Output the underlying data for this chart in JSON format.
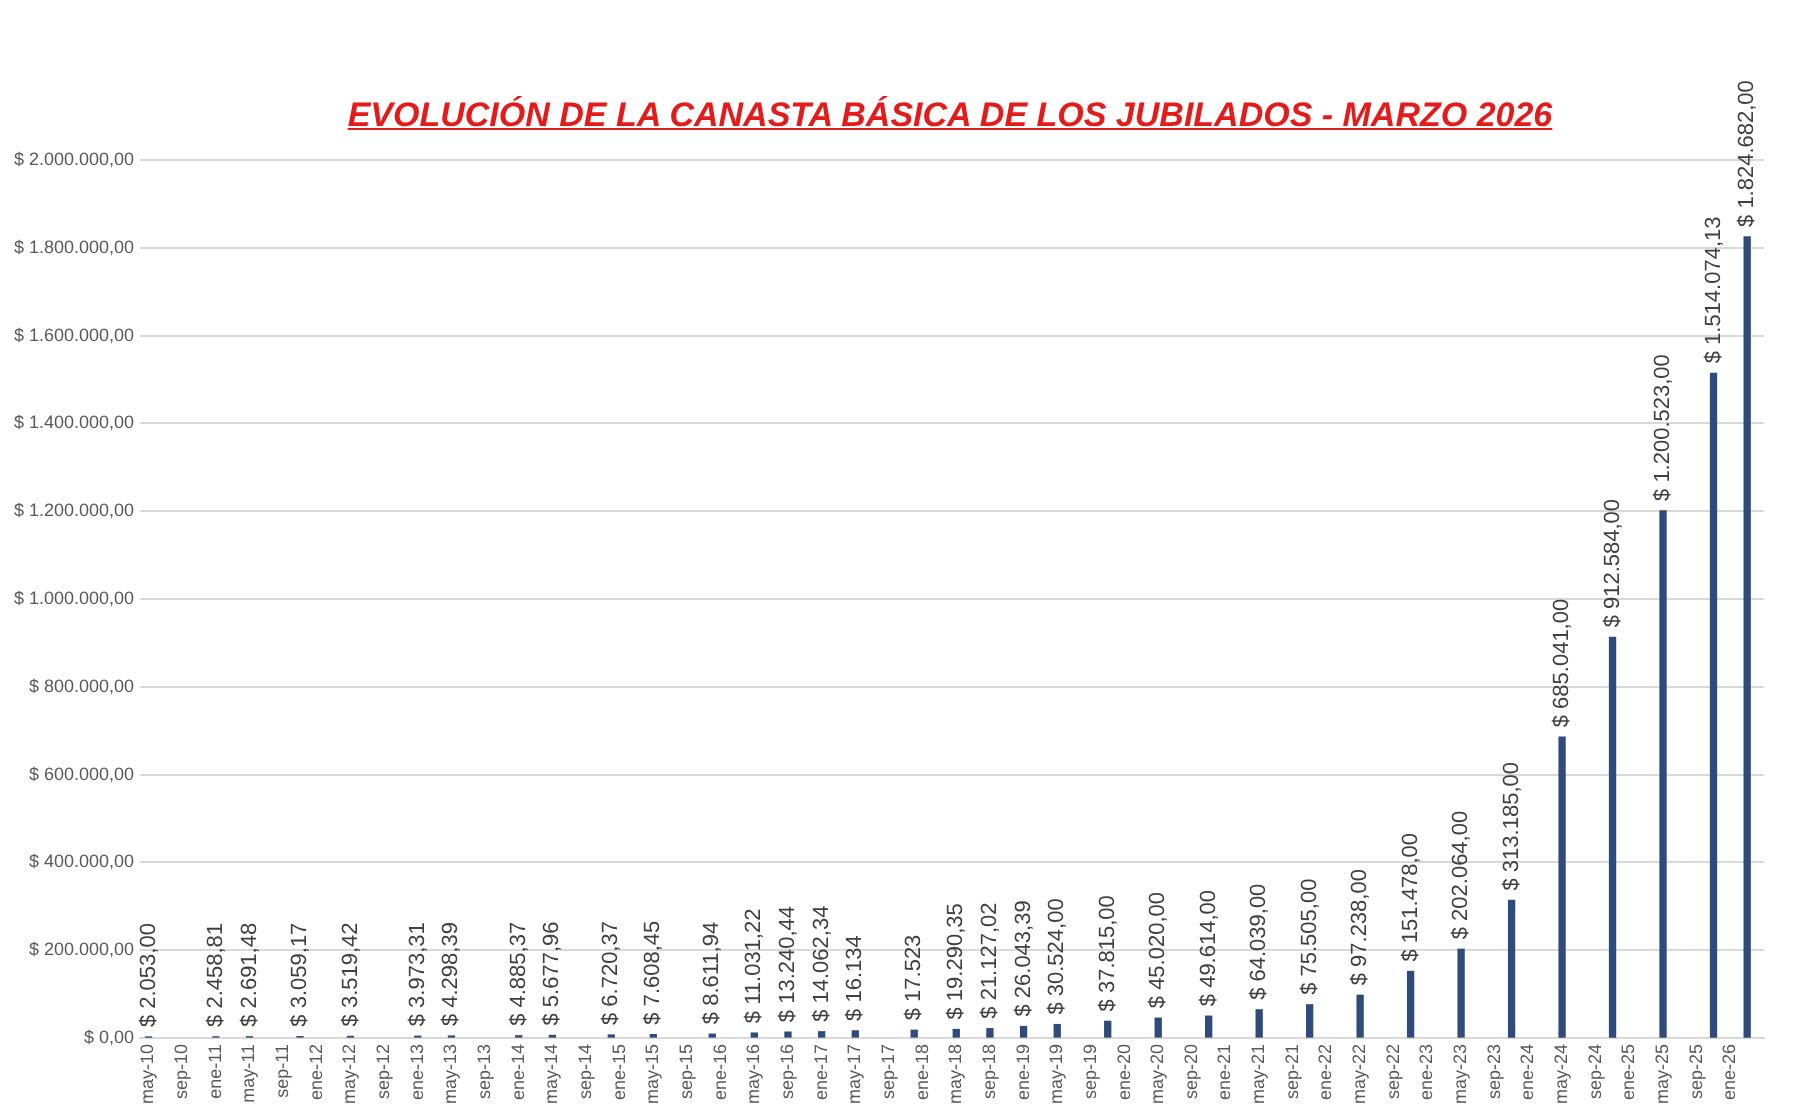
{
  "chart_data": {
    "type": "bar",
    "title": "EVOLUCIÓN DE LA CANASTA BÁSICA DE LOS JUBILADOS - MARZO 2026",
    "x": [
      "2010-05",
      "2011-01",
      "2011-05",
      "2011-11",
      "2012-05",
      "2013-01",
      "2013-05",
      "2014-01",
      "2014-05",
      "2014-12",
      "2015-05",
      "2015-12",
      "2016-05",
      "2016-09",
      "2017-01",
      "2017-05",
      "2017-12",
      "2018-05",
      "2018-09",
      "2019-01",
      "2019-05",
      "2019-11",
      "2020-05",
      "2020-11",
      "2021-05",
      "2021-11",
      "2022-05",
      "2022-11",
      "2023-05",
      "2023-11",
      "2024-05",
      "2024-11",
      "2025-05",
      "2025-11",
      "2026-03"
    ],
    "series": [
      {
        "color": "#2f4b7c",
        "values": [
          2053,
          2458.81,
          2691.48,
          3059.17,
          3519.42,
          3973.31,
          4298.39,
          4885.37,
          5677.96,
          6720.37,
          7608.45,
          8611.94,
          11031.22,
          13240.44,
          14062.34,
          16134,
          17523,
          19290.35,
          21127.02,
          26043.39,
          30524,
          37815,
          45020,
          49614,
          64039,
          75505,
          97238,
          151478,
          202064,
          313185,
          685041,
          912584,
          1200523,
          1514074.13,
          1824682
        ],
        "value_labels": [
          "$ 2.053,00",
          "$ 2.458,81",
          "$ 2.691,48",
          "$ 3.059,17",
          "$ 3.519,42",
          "$ 3.973,31",
          "$ 4.298,39",
          "$ 4.885,37",
          "$ 5.677,96",
          "$ 6.720,37",
          "$ 7.608,45",
          "$ 8.611,94",
          "$ 11.031,22",
          "$ 13.240,44",
          "$ 14.062,34",
          "$ 16.134",
          "$ 17.523",
          "$ 19.290,35",
          "$ 21.127,02",
          "$ 26.043,39",
          "$ 30.524,00",
          "$ 37.815,00",
          "$ 45.020,00",
          "$ 49.614,00",
          "$ 64.039,00",
          "$ 75.505,00",
          "$ 97.238,00",
          "$ 151.478,00",
          "$ 202.064,00",
          "$ 313.185,00",
          "$ 685.041,00",
          "$ 912.584,00",
          "$ 1.200.523,00",
          "$ 1.514.074,13",
          "$ 1.824.682,00"
        ]
      }
    ],
    "xlim": [
      "2010-04",
      "2026-05"
    ],
    "xticks": [
      {
        "value": "2010-05",
        "label": "may-10"
      },
      {
        "value": "2010-09",
        "label": "sep-10"
      },
      {
        "value": "2011-01",
        "label": "ene-11"
      },
      {
        "value": "2011-05",
        "label": "may-11"
      },
      {
        "value": "2011-09",
        "label": "sep-11"
      },
      {
        "value": "2012-01",
        "label": "ene-12"
      },
      {
        "value": "2012-05",
        "label": "may-12"
      },
      {
        "value": "2012-09",
        "label": "sep-12"
      },
      {
        "value": "2013-01",
        "label": "ene-13"
      },
      {
        "value": "2013-05",
        "label": "may-13"
      },
      {
        "value": "2013-09",
        "label": "sep-13"
      },
      {
        "value": "2014-01",
        "label": "ene-14"
      },
      {
        "value": "2014-05",
        "label": "may-14"
      },
      {
        "value": "2014-09",
        "label": "sep-14"
      },
      {
        "value": "2015-01",
        "label": "ene-15"
      },
      {
        "value": "2015-05",
        "label": "may-15"
      },
      {
        "value": "2015-09",
        "label": "sep-15"
      },
      {
        "value": "2016-01",
        "label": "ene-16"
      },
      {
        "value": "2016-05",
        "label": "may-16"
      },
      {
        "value": "2016-09",
        "label": "sep-16"
      },
      {
        "value": "2017-01",
        "label": "ene-17"
      },
      {
        "value": "2017-05",
        "label": "may-17"
      },
      {
        "value": "2017-09",
        "label": "sep-17"
      },
      {
        "value": "2018-01",
        "label": "ene-18"
      },
      {
        "value": "2018-05",
        "label": "may-18"
      },
      {
        "value": "2018-09",
        "label": "sep-18"
      },
      {
        "value": "2019-01",
        "label": "ene-19"
      },
      {
        "value": "2019-05",
        "label": "may-19"
      },
      {
        "value": "2019-09",
        "label": "sep-19"
      },
      {
        "value": "2020-01",
        "label": "ene-20"
      },
      {
        "value": "2020-05",
        "label": "may-20"
      },
      {
        "value": "2020-09",
        "label": "sep-20"
      },
      {
        "value": "2021-01",
        "label": "ene-21"
      },
      {
        "value": "2021-05",
        "label": "may-21"
      },
      {
        "value": "2021-09",
        "label": "sep-21"
      },
      {
        "value": "2022-01",
        "label": "ene-22"
      },
      {
        "value": "2022-05",
        "label": "may-22"
      },
      {
        "value": "2022-09",
        "label": "sep-22"
      },
      {
        "value": "2023-01",
        "label": "ene-23"
      },
      {
        "value": "2023-05",
        "label": "may-23"
      },
      {
        "value": "2023-09",
        "label": "sep-23"
      },
      {
        "value": "2024-01",
        "label": "ene-24"
      },
      {
        "value": "2024-05",
        "label": "may-24"
      },
      {
        "value": "2024-09",
        "label": "sep-24"
      },
      {
        "value": "2025-01",
        "label": "ene-25"
      },
      {
        "value": "2025-05",
        "label": "may-25"
      },
      {
        "value": "2025-09",
        "label": "sep-25"
      },
      {
        "value": "2026-01",
        "label": "ene-26"
      }
    ],
    "ylim": [
      0,
      2000000
    ],
    "yticks": [
      {
        "value": 0,
        "label": "$ 0,00"
      },
      {
        "value": 200000,
        "label": "$ 200.000,00"
      },
      {
        "value": 400000,
        "label": "$ 400.000,00"
      },
      {
        "value": 600000,
        "label": "$ 600.000,00"
      },
      {
        "value": 800000,
        "label": "$ 800.000,00"
      },
      {
        "value": 1000000,
        "label": "$ 1.000.000,00"
      },
      {
        "value": 1200000,
        "label": "$ 1.200.000,00"
      },
      {
        "value": 1400000,
        "label": "$ 1.400.000,00"
      },
      {
        "value": 1600000,
        "label": "$ 1.600.000,00"
      },
      {
        "value": 1800000,
        "label": "$ 1.800.000,00"
      },
      {
        "value": 2000000,
        "label": "$ 2.000.000,00"
      }
    ],
    "grid": "y",
    "legend": false
  }
}
